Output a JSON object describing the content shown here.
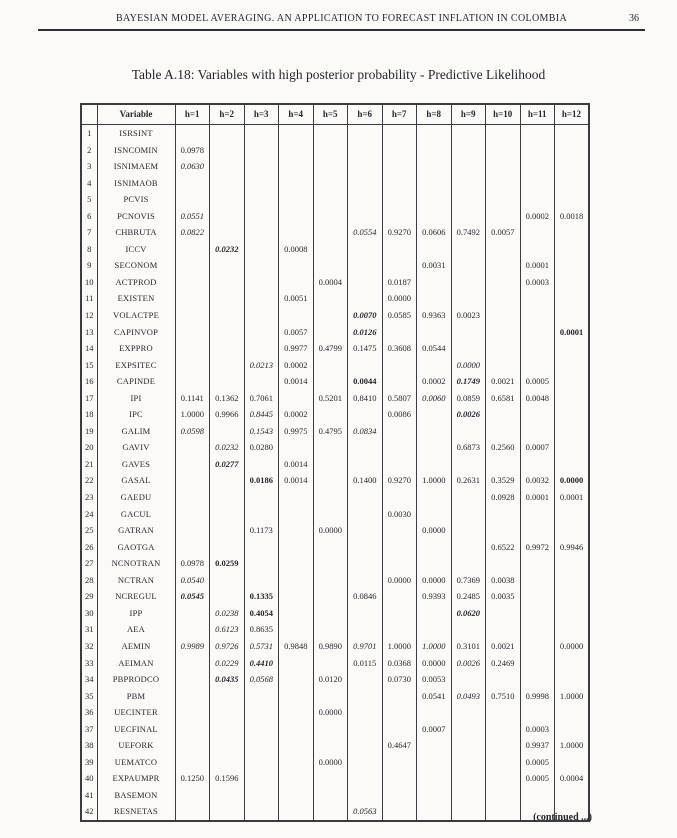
{
  "colors": {
    "ink": "#25252e",
    "border": "#3b3b42",
    "background": "#fbfaf7"
  },
  "header": {
    "running_title": "BAYESIAN MODEL AVERAGING. AN APPLICATION TO FORECAST INFLATION IN COLOMBIA",
    "page_number": "36"
  },
  "table_title": "Table A.18: Variables with high posterior probability - Predictive Likelihood",
  "continued_note": "(continued ...)",
  "table": {
    "columns": [
      "",
      "Variable",
      "h=1",
      "h=2",
      "h=3",
      "h=4",
      "h=5",
      "h=6",
      "h=7",
      "h=8",
      "h=9",
      "h=10",
      "h=11",
      "h=12"
    ],
    "rows": [
      {
        "n": "1",
        "variable": "ISRSINT",
        "values": [
          "",
          "",
          "",
          "",
          "",
          "",
          "",
          "",
          "",
          "",
          "",
          ""
        ]
      },
      {
        "n": "2",
        "variable": "ISNCOMIN",
        "values": [
          "0.0978",
          "",
          "",
          "",
          "",
          "",
          "",
          "",
          "",
          "",
          "",
          ""
        ]
      },
      {
        "n": "3",
        "variable": "ISNIMAEM",
        "values": [
          "0.0630|i",
          "",
          "",
          "",
          "",
          "",
          "",
          "",
          "",
          "",
          "",
          ""
        ]
      },
      {
        "n": "4",
        "variable": "ISNIMAOB",
        "values": [
          "",
          "",
          "",
          "",
          "",
          "",
          "",
          "",
          "",
          "",
          "",
          ""
        ]
      },
      {
        "n": "5",
        "variable": "PCVIS",
        "values": [
          "",
          "",
          "",
          "",
          "",
          "",
          "",
          "",
          "",
          "",
          "",
          ""
        ]
      },
      {
        "n": "6",
        "variable": "PCNOVIS",
        "values": [
          "0.0551|i",
          "",
          "",
          "",
          "",
          "",
          "",
          "",
          "",
          "",
          "0.0002",
          "0.0018"
        ]
      },
      {
        "n": "7",
        "variable": "CHBRUTA",
        "values": [
          "0.0822|i",
          "",
          "",
          "",
          "",
          "0.0554|i",
          "0.9270",
          "0.0606",
          "0.7492",
          "0.0057",
          "",
          ""
        ]
      },
      {
        "n": "8",
        "variable": "ICCV",
        "values": [
          "",
          "0.0232|bi",
          "",
          "0.0008",
          "",
          "",
          "",
          "",
          "",
          "",
          "",
          ""
        ]
      },
      {
        "n": "9",
        "variable": "SECONOM",
        "values": [
          "",
          "",
          "",
          "",
          "",
          "",
          "",
          "0.0031",
          "",
          "",
          "0.0001",
          ""
        ]
      },
      {
        "n": "10",
        "variable": "ACTPROD",
        "values": [
          "",
          "",
          "",
          "",
          "0.0004",
          "",
          "0.0187",
          "",
          "",
          "",
          "0.0003",
          ""
        ]
      },
      {
        "n": "11",
        "variable": "EXISTEN",
        "values": [
          "",
          "",
          "",
          "0.0051",
          "",
          "",
          "0.0000",
          "",
          "",
          "",
          "",
          ""
        ]
      },
      {
        "n": "12",
        "variable": "VOLACTPE",
        "values": [
          "",
          "",
          "",
          "",
          "",
          "0.0070|bi",
          "0.0585",
          "0.9363",
          "0.0023",
          "",
          "",
          ""
        ]
      },
      {
        "n": "13",
        "variable": "CAPINVOP",
        "values": [
          "",
          "",
          "",
          "0.0057",
          "",
          "0.0126|bi",
          "",
          "",
          "",
          "",
          "",
          "0.0001|b"
        ]
      },
      {
        "n": "14",
        "variable": "EXPPRO",
        "values": [
          "",
          "",
          "",
          "0.9977",
          "0.4799",
          "0.1475",
          "0.3608",
          "0.0544",
          "",
          "",
          "",
          ""
        ]
      },
      {
        "n": "15",
        "variable": "EXPSITEC",
        "values": [
          "",
          "",
          "0.0213|i",
          "0.0002",
          "",
          "",
          "",
          "",
          "0.0000|i",
          "",
          "",
          ""
        ]
      },
      {
        "n": "16",
        "variable": "CAPINDE",
        "values": [
          "",
          "",
          "",
          "0.0014",
          "",
          "0.0044|b",
          "",
          "0.0002",
          "0.1749|bi",
          "0.0021",
          "0.0005",
          ""
        ]
      },
      {
        "n": "17",
        "variable": "IPI",
        "values": [
          "0.1141",
          "0.1362",
          "0.7061",
          "",
          "0.5201",
          "0.8410",
          "0.5807",
          "0.0060|i",
          "0.0859",
          "0.6581",
          "0.0048",
          ""
        ]
      },
      {
        "n": "18",
        "variable": "IPC",
        "values": [
          "1.0000",
          "0.9966",
          "0.8445|i",
          "0.0002",
          "",
          "",
          "0.0086",
          "",
          "0.0026|bi",
          "",
          "",
          ""
        ]
      },
      {
        "n": "19",
        "variable": "GALIM",
        "values": [
          "0.0598|i",
          "",
          "0.1543|i",
          "0.9975",
          "0.4795",
          "0.0834|i",
          "",
          "",
          "",
          "",
          "",
          ""
        ]
      },
      {
        "n": "20",
        "variable": "GAVIV",
        "values": [
          "",
          "0.0232|i",
          "0.0280",
          "",
          "",
          "",
          "",
          "",
          "0.6873",
          "0.2560",
          "0.0007",
          ""
        ]
      },
      {
        "n": "21",
        "variable": "GAVES",
        "values": [
          "",
          "0.0277|bi",
          "",
          "0.0014",
          "",
          "",
          "",
          "",
          "",
          "",
          "",
          ""
        ]
      },
      {
        "n": "22",
        "variable": "GASAL",
        "values": [
          "",
          "",
          "0.0186|b",
          "0.0014",
          "",
          "0.1400",
          "0.9270",
          "1.0000",
          "0.2631",
          "0.3529",
          "0.0032",
          "0.0000|b"
        ]
      },
      {
        "n": "23",
        "variable": "GAEDU",
        "values": [
          "",
          "",
          "",
          "",
          "",
          "",
          "",
          "",
          "",
          "0.0928",
          "0.0001",
          "0.0001"
        ]
      },
      {
        "n": "24",
        "variable": "GACUL",
        "values": [
          "",
          "",
          "",
          "",
          "",
          "",
          "0.0030",
          "",
          "",
          "",
          "",
          ""
        ]
      },
      {
        "n": "25",
        "variable": "GATRAN",
        "values": [
          "",
          "",
          "0.1173",
          "",
          "0.0000",
          "",
          "",
          "0.0000",
          "",
          "",
          "",
          ""
        ]
      },
      {
        "n": "26",
        "variable": "GAOTGA",
        "values": [
          "",
          "",
          "",
          "",
          "",
          "",
          "",
          "",
          "",
          "0.6522",
          "0.9972",
          "0.9946"
        ]
      },
      {
        "n": "27",
        "variable": "NCNOTRAN",
        "values": [
          "0.0978",
          "0.0259|b",
          "",
          "",
          "",
          "",
          "",
          "",
          "",
          "",
          "",
          ""
        ]
      },
      {
        "n": "28",
        "variable": "NCTRAN",
        "values": [
          "0.0540|i",
          "",
          "",
          "",
          "",
          "",
          "0.0000",
          "0.0000",
          "0.7369",
          "0.0038",
          "",
          ""
        ]
      },
      {
        "n": "29",
        "variable": "NCREGUL",
        "values": [
          "0.0545|bi",
          "",
          "0.1335|b",
          "",
          "",
          "0.0846",
          "",
          "0.9393",
          "0.2485",
          "0.0035",
          "",
          ""
        ]
      },
      {
        "n": "30",
        "variable": "IPP",
        "values": [
          "",
          "0.0238|i",
          "0.4054|b",
          "",
          "",
          "",
          "",
          "",
          "0.0620|bi",
          "",
          "",
          ""
        ]
      },
      {
        "n": "31",
        "variable": "AEA",
        "values": [
          "",
          "0.6123|i",
          "0.8635",
          "",
          "",
          "",
          "",
          "",
          "",
          "",
          "",
          ""
        ]
      },
      {
        "n": "32",
        "variable": "AEMIN",
        "values": [
          "0.9989|i",
          "0.9726|i",
          "0.5731|i",
          "0.9848",
          "0.9890",
          "0.9701|i",
          "1.0000",
          "1.0000|i",
          "0.3101",
          "0.0021",
          "",
          "0.0000"
        ]
      },
      {
        "n": "33",
        "variable": "AEIMAN",
        "values": [
          "",
          "0.0229|i",
          "0.4410|bi",
          "",
          "",
          "0.0115",
          "0.0368",
          "0.0000",
          "0.0026|i",
          "0.2469",
          "",
          ""
        ]
      },
      {
        "n": "34",
        "variable": "PBPRODCO",
        "values": [
          "",
          "0.0435|bi",
          "0.0568|i",
          "",
          "0.0120",
          "",
          "0.0730",
          "0.0053",
          "",
          "",
          "",
          ""
        ]
      },
      {
        "n": "35",
        "variable": "PBM",
        "values": [
          "",
          "",
          "",
          "",
          "",
          "",
          "",
          "0.0541",
          "0.0493|i",
          "0.7510",
          "0.9998",
          "1.0000"
        ]
      },
      {
        "n": "36",
        "variable": "UECINTER",
        "values": [
          "",
          "",
          "",
          "",
          "0.0000",
          "",
          "",
          "",
          "",
          "",
          "",
          ""
        ]
      },
      {
        "n": "37",
        "variable": "UECFINAL",
        "values": [
          "",
          "",
          "",
          "",
          "",
          "",
          "",
          "0.0007",
          "",
          "",
          "0.0003",
          ""
        ]
      },
      {
        "n": "38",
        "variable": "UEFORK",
        "values": [
          "",
          "",
          "",
          "",
          "",
          "",
          "0.4647",
          "",
          "",
          "",
          "0.9937",
          "1.0000"
        ]
      },
      {
        "n": "39",
        "variable": "UEMATCO",
        "values": [
          "",
          "",
          "",
          "",
          "0.0000",
          "",
          "",
          "",
          "",
          "",
          "0.0005",
          ""
        ]
      },
      {
        "n": "40",
        "variable": "EXPAUMPR",
        "values": [
          "0.1250",
          "0.1596",
          "",
          "",
          "",
          "",
          "",
          "",
          "",
          "",
          "0.0005",
          "0.0004"
        ]
      },
      {
        "n": "41",
        "variable": "BASEMON",
        "values": [
          "",
          "",
          "",
          "",
          "",
          "",
          "",
          "",
          "",
          "",
          "",
          ""
        ]
      },
      {
        "n": "42",
        "variable": "RESNETAS",
        "values": [
          "",
          "",
          "",
          "",
          "",
          "0.0563|i",
          "",
          "",
          "",
          "",
          "",
          ""
        ]
      }
    ]
  }
}
